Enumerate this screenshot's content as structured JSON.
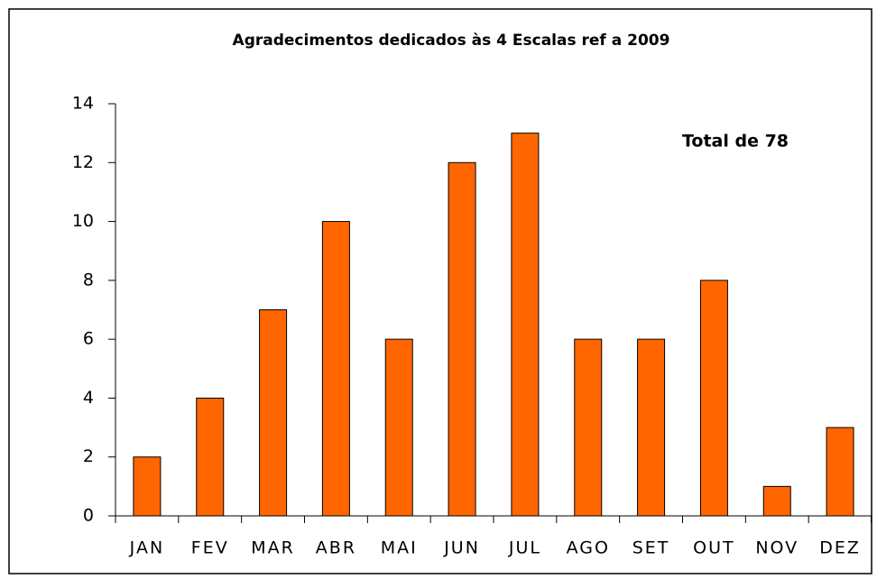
{
  "chart_data": {
    "type": "bar",
    "title": "Agradecimentos dedicados às 4 Escalas ref a 2009",
    "annotation": "Total de 78",
    "categories": [
      "JAN",
      "FEV",
      "MAR",
      "ABR",
      "MAI",
      "JUN",
      "JUL",
      "AGO",
      "SET",
      "OUT",
      "NOV",
      "DEZ"
    ],
    "values": [
      2,
      4,
      7,
      10,
      6,
      12,
      13,
      6,
      6,
      8,
      1,
      3
    ],
    "color": "#ff6600",
    "ylim": [
      0,
      14
    ],
    "yticks": [
      0,
      2,
      4,
      6,
      8,
      10,
      12,
      14
    ],
    "grid": false
  }
}
